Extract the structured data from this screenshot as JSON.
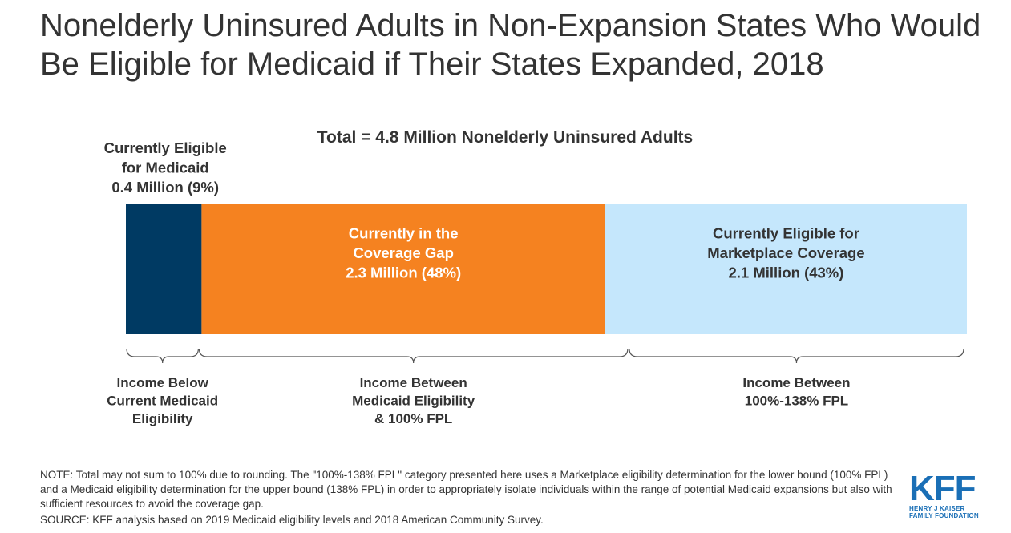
{
  "title": "Nonelderly Uninsured Adults in Non-Expansion States Who Would Be Eligible for Medicaid if Their States Expanded, 2018",
  "chart_data": {
    "type": "bar",
    "orientation": "horizontal-stacked",
    "subtitle": "Total = 4.8 Million Nonelderly Uninsured Adults",
    "segments": [
      {
        "label_lines": [
          "Currently  Eligible",
          "for Medicaid",
          "0.4 Million  (9%)"
        ],
        "value": 0.4,
        "percent": 9,
        "color": "#003a63",
        "label_position": "above"
      },
      {
        "label_lines": [
          "Currently  in the",
          "Coverage Gap",
          "2.3 Million  (48%)"
        ],
        "value": 2.3,
        "percent": 48,
        "color": "#f58220",
        "label_position": "inside"
      },
      {
        "label_lines": [
          "Currently Eligible  for",
          "Marketplace Coverage",
          "2.1 Million  (43%)"
        ],
        "value": 2.1,
        "percent": 43,
        "color": "#c5e7fc",
        "label_position": "inside"
      }
    ],
    "brackets": [
      {
        "lines": [
          "Income Below",
          "Current Medicaid",
          "Eligibility"
        ]
      },
      {
        "lines": [
          "Income Between",
          "Medicaid Eligibility",
          "& 100% FPL"
        ]
      },
      {
        "lines": [
          "Income Between",
          "100%-138% FPL"
        ]
      }
    ]
  },
  "note": "NOTE: Total may not sum to 100% due to rounding. The \"100%-138% FPL\" category presented here uses a Marketplace eligibility determination for the lower bound (100% FPL) and a Medicaid eligibility determination for the upper bound (138% FPL) in order to appropriately isolate individuals within the range of potential Medicaid expansions but also with sufficient resources to avoid the coverage gap.",
  "source": "SOURCE: KFF analysis based on 2019 Medicaid eligibility levels and 2018 American Community Survey.",
  "logo": {
    "mark": "KFF",
    "line1": "HENRY J KAISER",
    "line2": "FAMILY FOUNDATION",
    "color": "#1a6fb6"
  }
}
